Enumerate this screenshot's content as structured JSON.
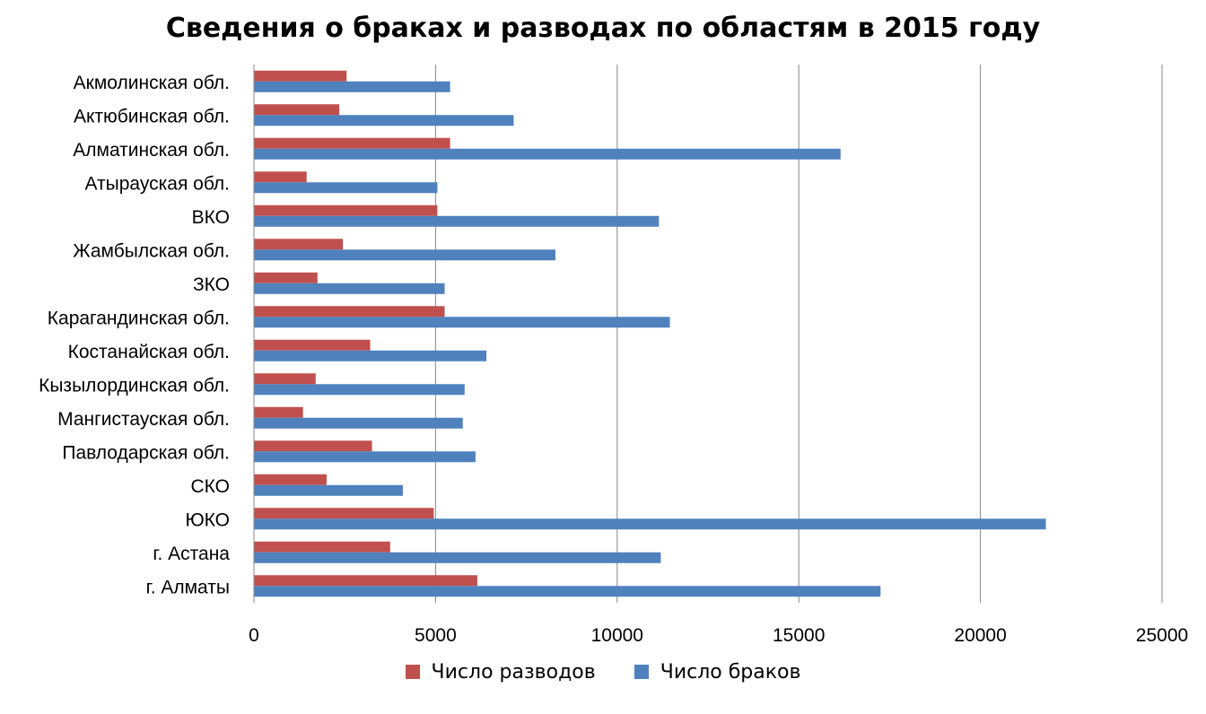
{
  "chart_data": {
    "type": "bar",
    "orientation": "horizontal",
    "title": "Сведения о браках и разводах по областям в 2015 году",
    "categories": [
      "Акмолинская обл.",
      "Актюбинская обл.",
      "Алматинская обл.",
      "Атырауская обл.",
      "ВКО",
      "Жамбылская обл.",
      "ЗКО",
      "Карагандинская обл.",
      "Костанайская обл.",
      "Кызылординская обл.",
      "Мангистауская обл.",
      "Павлодарская обл.",
      "СКО",
      "ЮКО",
      "г. Астана",
      "г. Алматы"
    ],
    "series": [
      {
        "name": "Число разводов",
        "color": "#C0504D",
        "values": [
          2550,
          2350,
          5400,
          1450,
          5050,
          2450,
          1750,
          5250,
          3200,
          1700,
          1350,
          3250,
          2000,
          4950,
          3750,
          6150
        ]
      },
      {
        "name": "Число браков",
        "color": "#4F81BD",
        "values": [
          5400,
          7150,
          16150,
          5050,
          11150,
          8300,
          5250,
          11450,
          6400,
          5800,
          5750,
          6100,
          4100,
          21800,
          11200,
          17250
        ]
      }
    ],
    "xlim": [
      0,
      25000
    ],
    "xticks": [
      "0",
      "5000",
      "10000",
      "15000",
      "20000",
      "25000"
    ],
    "grid": "vertical",
    "legend_position": "bottom"
  }
}
